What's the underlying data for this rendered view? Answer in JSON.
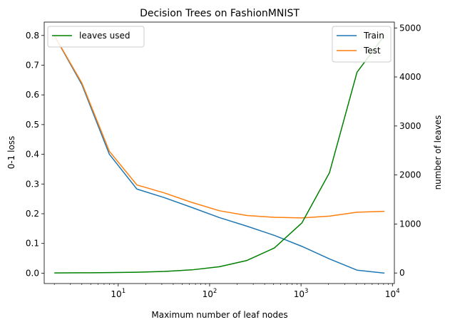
{
  "chart_data": {
    "type": "line",
    "title": "Decision Trees on FashionMNIST",
    "xlabel": "Maximum number of leaf nodes",
    "ylabel": "0-1 loss",
    "y2label": "number of leaves",
    "xscale": "log",
    "xlim": [
      1.55,
      10500
    ],
    "ylim": [
      -0.035,
      0.845
    ],
    "y2lim": [
      -215,
      5120
    ],
    "grid": false,
    "x": [
      2,
      4,
      8,
      16,
      32,
      64,
      128,
      256,
      512,
      1024,
      2048,
      4096,
      8192
    ],
    "x_ticks": [
      {
        "value": 10,
        "base": "10",
        "exp": "1"
      },
      {
        "value": 100,
        "base": "10",
        "exp": "2"
      },
      {
        "value": 1000,
        "base": "10",
        "exp": "3"
      },
      {
        "value": 10000,
        "base": "10",
        "exp": "4"
      }
    ],
    "y_ticks": [
      "0.0",
      "0.1",
      "0.2",
      "0.3",
      "0.4",
      "0.5",
      "0.6",
      "0.7",
      "0.8"
    ],
    "y2_ticks": [
      "0",
      "1000",
      "2000",
      "3000",
      "4000",
      "5000"
    ],
    "series": [
      {
        "name": "Train",
        "axis": "left",
        "color": "#1f77b4",
        "values": [
          0.8,
          0.635,
          0.4,
          0.283,
          0.254,
          0.221,
          0.187,
          0.158,
          0.127,
          0.09,
          0.048,
          0.01,
          0.0
        ]
      },
      {
        "name": "Test",
        "axis": "left",
        "color": "#ff7f0e",
        "values": [
          0.8,
          0.64,
          0.41,
          0.297,
          0.27,
          0.238,
          0.21,
          0.194,
          0.188,
          0.186,
          0.192,
          0.205,
          0.208
        ]
      },
      {
        "name": "leaves used",
        "axis": "right",
        "color": "#008000",
        "values": [
          2,
          4,
          8,
          16,
          32,
          64,
          128,
          256,
          512,
          1024,
          2048,
          4096,
          4850
        ]
      }
    ],
    "legends": [
      {
        "placement": "upper-left",
        "entries": [
          "leaves used"
        ]
      },
      {
        "placement": "upper-right",
        "entries": [
          "Train",
          "Test"
        ]
      }
    ]
  }
}
